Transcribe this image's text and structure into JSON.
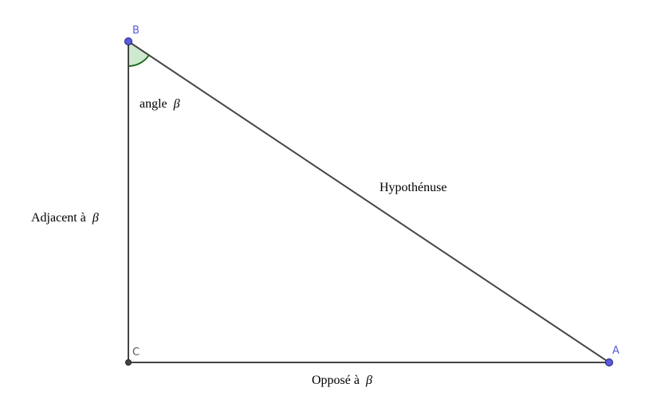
{
  "points": {
    "A": {
      "label": "A",
      "color": "#5b5bdc"
    },
    "B": {
      "label": "B",
      "color": "#5b5bdc"
    },
    "C": {
      "label": "C",
      "color": "#555555"
    }
  },
  "labels": {
    "angle": {
      "text": "angle",
      "symbol": "β"
    },
    "adjacent": {
      "text": "Adjacent à",
      "symbol": "β"
    },
    "opposite": {
      "text": "Opposé à",
      "symbol": "β"
    },
    "hypotenuse": {
      "text": "Hypothénuse"
    }
  },
  "colors": {
    "edge": "#444444",
    "angle_fill": "#cfe9cf",
    "angle_stroke": "#1f6e1f",
    "point_fill": "#5b5bdc",
    "point_stroke": "#1a1a7a",
    "vertex_c_fill": "#444444"
  }
}
